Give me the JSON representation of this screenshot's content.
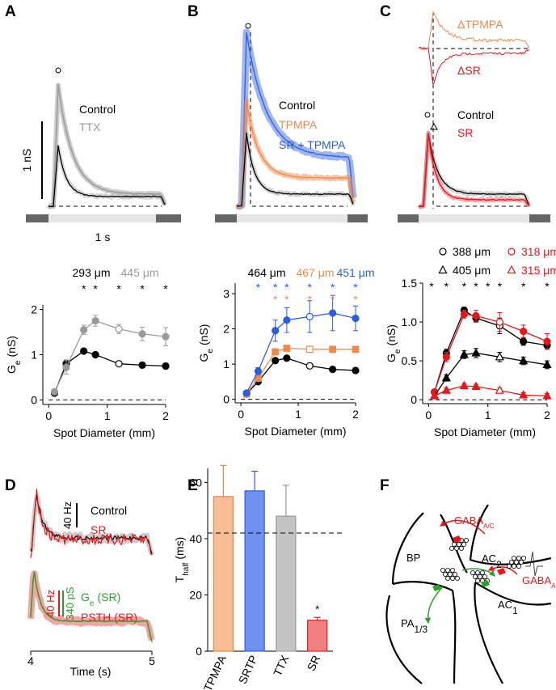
{
  "panel_labels": [
    "A",
    "B",
    "C",
    "D",
    "E",
    "F"
  ],
  "panel_a": {
    "legend": [
      {
        "text": "Control",
        "color": "#000000"
      },
      {
        "text": "TTX",
        "color": "#9a9a9a"
      }
    ],
    "scale_y": "1 nS",
    "scale_x": "1 s"
  },
  "panel_b": {
    "legend": [
      {
        "text": "Control",
        "color": "#000000"
      },
      {
        "text": "TPMPA",
        "color": "#f08a4b"
      },
      {
        "text": "SR + TPMPA",
        "color": "#2a5de0"
      }
    ]
  },
  "panel_c": {
    "difference_labels": [
      {
        "text": "ΔTPMPA",
        "color": "#f08a4b"
      },
      {
        "text": "ΔSR",
        "color": "#e8161b"
      }
    ],
    "legend": [
      {
        "text": "Control",
        "color": "#000000"
      },
      {
        "text": "SR",
        "color": "#e8161b"
      }
    ]
  },
  "panel_d": {
    "legend_top": [
      {
        "text": "Control",
        "color": "#000000"
      },
      {
        "text": "SR",
        "color": "#e8161b"
      }
    ],
    "scale_top": "40 Hz",
    "scale_bottom": [
      {
        "text": "40 Hz",
        "color": "#e8161b"
      },
      {
        "text": "340 pS",
        "color": "#2ca02c"
      }
    ],
    "legend_bottom": [
      {
        "text": "G",
        "sub": "e",
        "rest": "(SR)",
        "color": "#2ca02c"
      },
      {
        "text": "PSTH (SR)",
        "color": "#e8161b"
      }
    ],
    "x_label": "Time (s)",
    "xlim": [
      4,
      5
    ],
    "xticks": [
      4,
      5
    ]
  },
  "diagram": {
    "labels": [
      {
        "text": "BP"
      },
      {
        "text": "AC",
        "sub": "2"
      },
      {
        "text": "PA",
        "sub": "1/3"
      },
      {
        "text": "AC",
        "sub": "1"
      },
      {
        "text": "GABA",
        "sub": "A/C"
      },
      {
        "text": "GABA",
        "sub": "A"
      }
    ]
  },
  "chart_data": [
    {
      "type": "line",
      "x": [
        0.1,
        0.3,
        0.6,
        0.8,
        1.2,
        1.6,
        2
      ],
      "xlim": [
        -0.1,
        2
      ],
      "xticks": [
        0,
        1,
        2
      ],
      "ylim": [
        -0.1,
        2.1
      ],
      "yticks": [
        0,
        1,
        2
      ],
      "x_label": "Spot Diameter (mm)",
      "y_label": {
        "text": "G",
        "sub": "e",
        "unit": "(nS)"
      },
      "ref_line": 0,
      "open_x": 1.2,
      "series": [
        {
          "name": "293 μm",
          "color": "#000000",
          "marker": "circle",
          "values": [
            0.15,
            0.8,
            1.08,
            1.0,
            0.8,
            0.77,
            0.75
          ],
          "errors": [
            0.05,
            0.08,
            0.05,
            0.05,
            0.05,
            0.06,
            0.06
          ]
        },
        {
          "name": "445 μm",
          "color": "#9a9a9a",
          "marker": "circle",
          "values": [
            0.18,
            0.72,
            1.55,
            1.75,
            1.57,
            1.46,
            1.4
          ],
          "errors": [
            0.06,
            0.15,
            0.1,
            0.12,
            0.1,
            0.15,
            0.2
          ]
        }
      ],
      "stars": [
        {
          "text": "*",
          "color": "#000000",
          "x": [
            0.6,
            0.8,
            1.2,
            1.6,
            2
          ]
        }
      ]
    },
    {
      "type": "line",
      "x": [
        0.1,
        0.3,
        0.6,
        0.8,
        1.2,
        1.6,
        2
      ],
      "xlim": [
        -0.1,
        2
      ],
      "xticks": [
        0,
        1,
        2
      ],
      "ylim": [
        -0.1,
        3.3
      ],
      "yticks": [
        0,
        1,
        2,
        3
      ],
      "x_label": "Spot Diameter (mm)",
      "y_label": {
        "text": "G",
        "sub": "e",
        "unit": "(nS)"
      },
      "ref_line": 0,
      "open_x": 1.2,
      "series": [
        {
          "name": "464 μm",
          "color": "#000000",
          "marker": "circle",
          "values": [
            0.15,
            0.5,
            1.1,
            1.17,
            0.95,
            0.85,
            0.82
          ],
          "errors": [
            0.04,
            0.05,
            0.05,
            0.05,
            0.04,
            0.05,
            0.05
          ]
        },
        {
          "name": "467 μm",
          "color": "#f08a4b",
          "marker": "square",
          "values": [
            0.15,
            0.6,
            1.35,
            1.45,
            1.42,
            1.42,
            1.42
          ],
          "errors": [
            0.04,
            0.06,
            0.08,
            0.08,
            0.06,
            0.07,
            0.07
          ]
        },
        {
          "name": "451 μm",
          "color": "#2a5de0",
          "marker": "circle",
          "values": [
            0.18,
            0.8,
            1.95,
            2.25,
            2.35,
            2.45,
            2.3
          ],
          "errors": [
            0.05,
            0.1,
            0.3,
            0.35,
            0.45,
            0.5,
            0.35
          ]
        }
      ],
      "stars": [
        {
          "text": "*",
          "color": "#2a5de0",
          "x": [
            0.3,
            0.6,
            0.8,
            1.2,
            1.6,
            2
          ]
        },
        {
          "text": "*",
          "color": "#f08a4b",
          "x": [
            0.6,
            0.8,
            1.2,
            1.6,
            2
          ]
        }
      ]
    },
    {
      "type": "line",
      "x": [
        0.1,
        0.3,
        0.6,
        0.8,
        1.2,
        1.6,
        2
      ],
      "xlim": [
        -0.1,
        2
      ],
      "xticks": [
        0,
        1,
        2
      ],
      "ylim": [
        -0.05,
        1.5
      ],
      "yticks": [
        0,
        0.5,
        {
          "value": 1,
          "label": "1.0"
        },
        1.5
      ],
      "x_label": "Spot Diameter (mm)",
      "y_label": {
        "text": "G",
        "sub": "e",
        "unit": "(nS)"
      },
      "ref_line": 0,
      "open_x": 1.2,
      "series": [
        {
          "name": "388 μm",
          "color": "#000000",
          "marker": "circle",
          "values": [
            0.1,
            0.6,
            1.15,
            1.05,
            0.95,
            0.75,
            0.7
          ],
          "errors": [
            0.03,
            0.05,
            0.04,
            0.05,
            0.1,
            0.05,
            0.05
          ]
        },
        {
          "name": "318 μm",
          "color": "#e8161b",
          "marker": "circle",
          "values": [
            0.1,
            0.55,
            1.1,
            1.08,
            1.0,
            0.88,
            0.75
          ],
          "errors": [
            0.03,
            0.06,
            0.05,
            0.07,
            0.12,
            0.08,
            0.1
          ]
        },
        {
          "name": "405 μm",
          "color": "#000000",
          "marker": "triangle",
          "values": [
            0.05,
            0.28,
            0.58,
            0.6,
            0.55,
            0.5,
            0.45
          ],
          "errors": [
            0.02,
            0.04,
            0.05,
            0.06,
            0.06,
            0.05,
            0.05
          ]
        },
        {
          "name": "315 μm",
          "color": "#e8161b",
          "marker": "triangle",
          "values": [
            0.05,
            0.12,
            0.18,
            0.17,
            0.12,
            0.06,
            0.05
          ],
          "errors": [
            0.02,
            0.03,
            0.03,
            0.03,
            0.03,
            0.03,
            0.03
          ]
        }
      ],
      "stars": [
        {
          "text": "*",
          "color": "#000000",
          "x": [
            0.05,
            0.3,
            0.6,
            0.8,
            1.0,
            1.2,
            1.6,
            2
          ]
        }
      ]
    },
    {
      "type": "bar",
      "categories": [
        "TPMPA",
        "SRTP",
        "TTX",
        "SR"
      ],
      "values": [
        55,
        57,
        48,
        11
      ],
      "errors": [
        11,
        7,
        11,
        1
      ],
      "colors": [
        "#f7be96",
        "#6f92f0",
        "#c4c4c4",
        "#f28080"
      ],
      "edge_colors": [
        "#e8864a",
        "#2f5fe0",
        "#999999",
        "#e02020"
      ],
      "ylim": [
        0,
        65
      ],
      "yticks": [
        0,
        20,
        40,
        60
      ],
      "y_label": {
        "text": "T",
        "sub": "half",
        "unit": "(ms)"
      },
      "ref_line": 42,
      "annotations": [
        {
          "text": "*",
          "category": "SR"
        }
      ]
    }
  ]
}
